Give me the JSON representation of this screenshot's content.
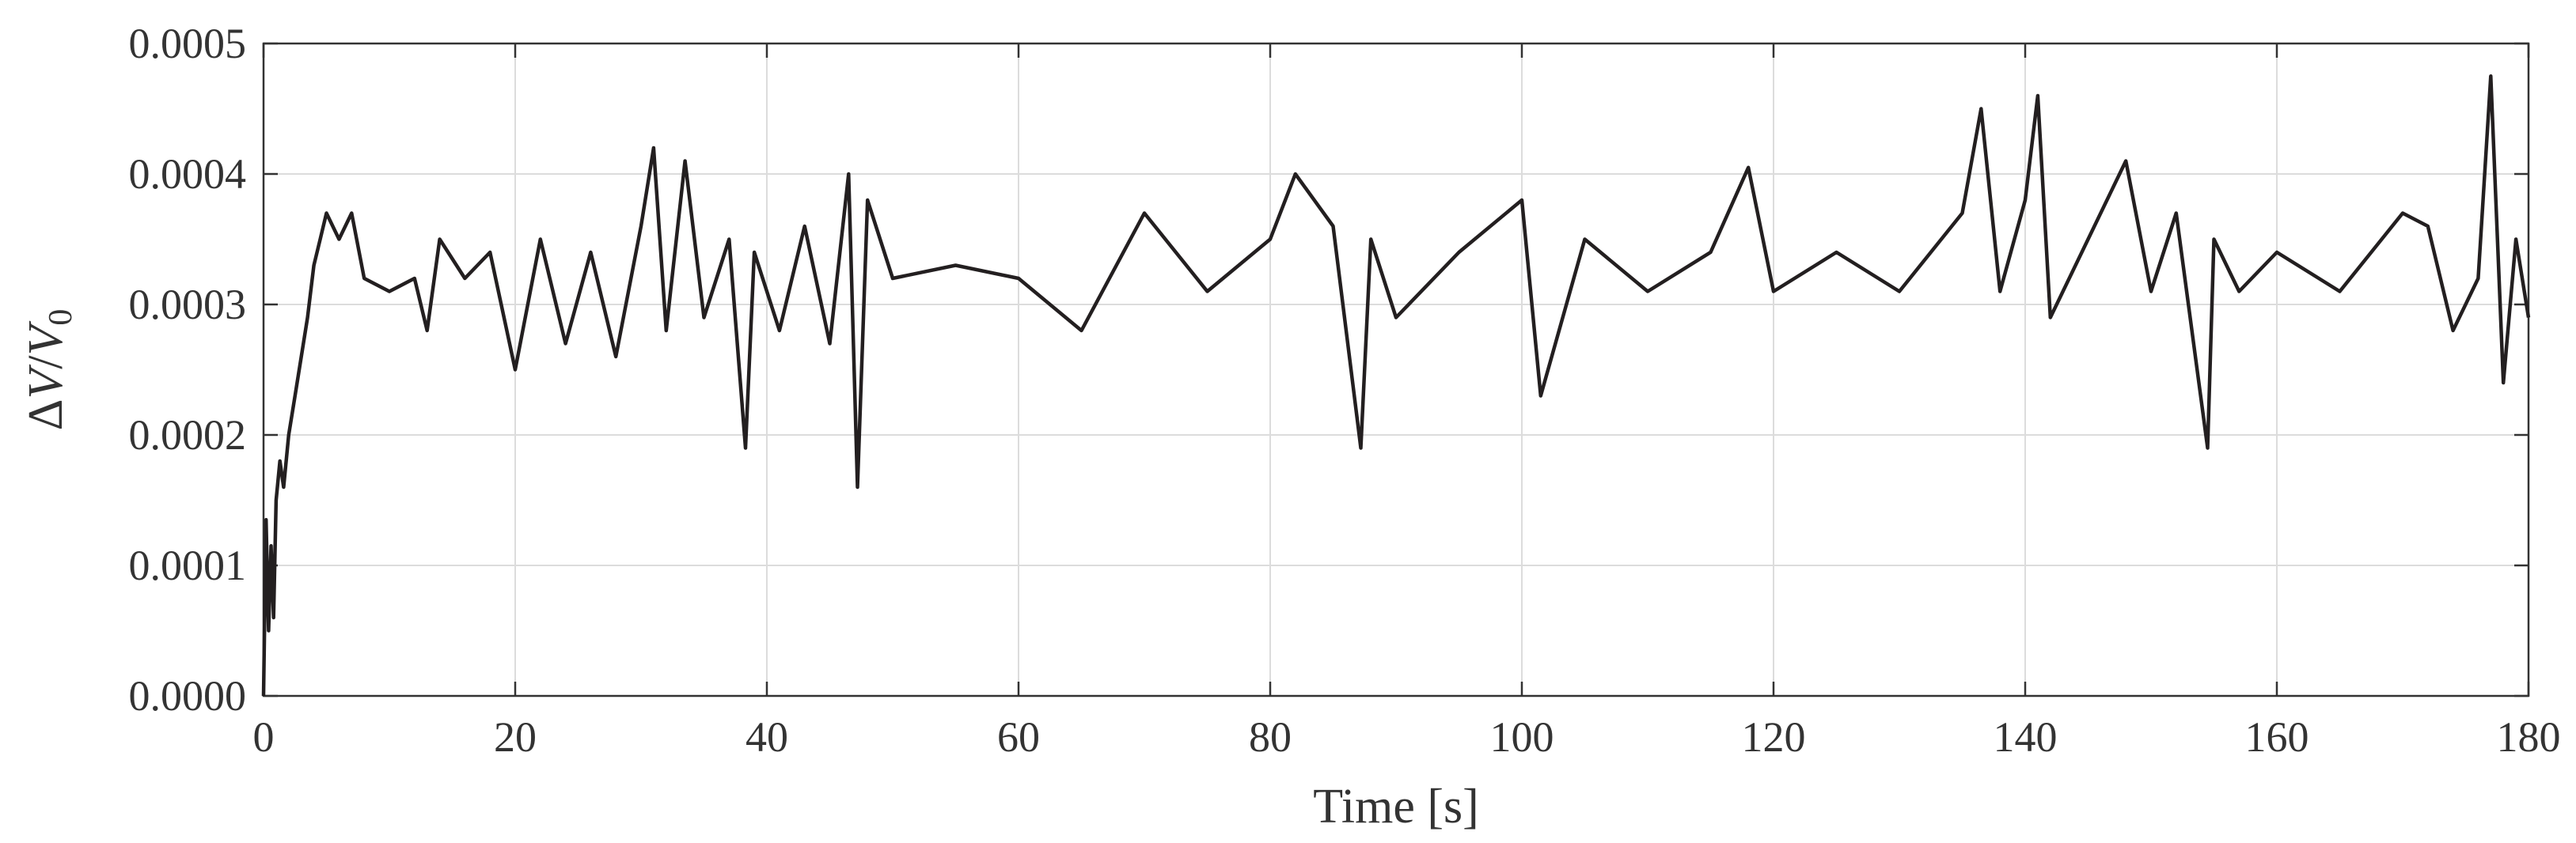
{
  "chart_data": {
    "type": "line",
    "title": "",
    "xlabel": "Time [s]",
    "ylabel_parts": {
      "delta": "Δ",
      "v": "V",
      "slash": "/",
      "v0": "V",
      "sub": "0"
    },
    "xlim": [
      0,
      180
    ],
    "ylim": [
      0,
      0.0005
    ],
    "x_ticks": [
      0,
      20,
      40,
      60,
      80,
      100,
      120,
      140,
      160,
      180
    ],
    "x_tick_labels": [
      "0",
      "20",
      "40",
      "60",
      "80",
      "100",
      "120",
      "140",
      "160",
      "180"
    ],
    "y_ticks": [
      0,
      0.0001,
      0.0002,
      0.0003,
      0.0004,
      0.0005
    ],
    "y_tick_labels": [
      "0.0000",
      "0.0001",
      "0.0002",
      "0.0003",
      "0.0004",
      "0.0005"
    ],
    "grid": true,
    "line_color": "#231f20",
    "series": [
      {
        "x": [
          0,
          0.2,
          0.4,
          0.6,
          0.8,
          1.0,
          1.3,
          1.6,
          2.0,
          2.5,
          3.0,
          3.5,
          4.0,
          4.5,
          5.0,
          6.0,
          7.0,
          8.0,
          10,
          12,
          13,
          14,
          16,
          18,
          20,
          22,
          24,
          26,
          28,
          30,
          31,
          32,
          33.5,
          35,
          37,
          38.3,
          39,
          41,
          43,
          45,
          46.5,
          47.2,
          48,
          50,
          55,
          60,
          65,
          70,
          75,
          80,
          82,
          85,
          87.2,
          88,
          90,
          95,
          100,
          101.5,
          105,
          110,
          115,
          118,
          120,
          125,
          130,
          135,
          136.5,
          138,
          140,
          141,
          142,
          145,
          148,
          150,
          152,
          154.5,
          155,
          157,
          160,
          165,
          170,
          172,
          174,
          176,
          177,
          178,
          179,
          180
        ],
        "y": [
          0.0,
          0.000135,
          5e-05,
          0.000115,
          6e-05,
          0.00015,
          0.00018,
          0.00016,
          0.0002,
          0.00023,
          0.00026,
          0.00029,
          0.00033,
          0.00035,
          0.00037,
          0.00035,
          0.00037,
          0.00032,
          0.00031,
          0.00032,
          0.00028,
          0.00035,
          0.00032,
          0.00034,
          0.00025,
          0.00035,
          0.00027,
          0.00034,
          0.00026,
          0.00036,
          0.00042,
          0.00028,
          0.00041,
          0.00029,
          0.00035,
          0.00019,
          0.00034,
          0.00028,
          0.00036,
          0.00027,
          0.0004,
          0.00016,
          0.00038,
          0.00032,
          0.00033,
          0.00032,
          0.00028,
          0.00037,
          0.00031,
          0.00035,
          0.0004,
          0.00036,
          0.00019,
          0.00035,
          0.00029,
          0.00034,
          0.00038,
          0.00023,
          0.00035,
          0.00031,
          0.00034,
          0.000405,
          0.00031,
          0.00034,
          0.00031,
          0.00037,
          0.00045,
          0.00031,
          0.00038,
          0.00046,
          0.00029,
          0.00035,
          0.00041,
          0.00031,
          0.00037,
          0.00019,
          0.00035,
          0.00031,
          0.00034,
          0.00031,
          0.00037,
          0.00036,
          0.00028,
          0.00032,
          0.000475,
          0.00024,
          0.00035,
          0.00029
        ]
      }
    ]
  }
}
